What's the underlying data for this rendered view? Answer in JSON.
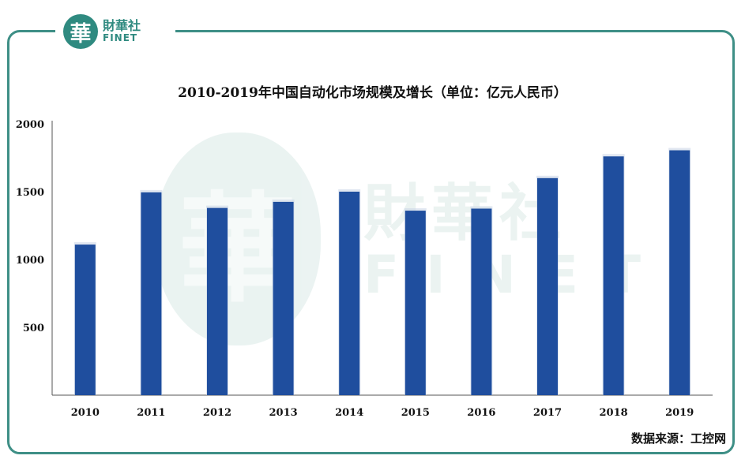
{
  "logo": {
    "seal_char": "華",
    "name_cn": "財華社",
    "name_en": "FINET"
  },
  "watermark": {
    "seal_char": "華",
    "name_cn": "財華社",
    "name_en": "FINET"
  },
  "source": "数据来源：工控网",
  "colors": {
    "bar": "#1f4e9e",
    "frame": "#3e8f86",
    "axis": "#555555"
  },
  "chart_data": {
    "type": "bar",
    "title": "2010-2019年中国自动化市场规模及增长（单位：亿元人民币）",
    "categories": [
      "2010",
      "2011",
      "2012",
      "2013",
      "2014",
      "2015",
      "2016",
      "2017",
      "2018",
      "2019"
    ],
    "values": [
      1110,
      1495,
      1380,
      1425,
      1500,
      1360,
      1375,
      1600,
      1760,
      1805
    ],
    "yticks": [
      500,
      1000,
      1500,
      2000
    ],
    "ylim": [
      0,
      2000
    ],
    "xlabel": "",
    "ylabel": "",
    "grid": false
  }
}
